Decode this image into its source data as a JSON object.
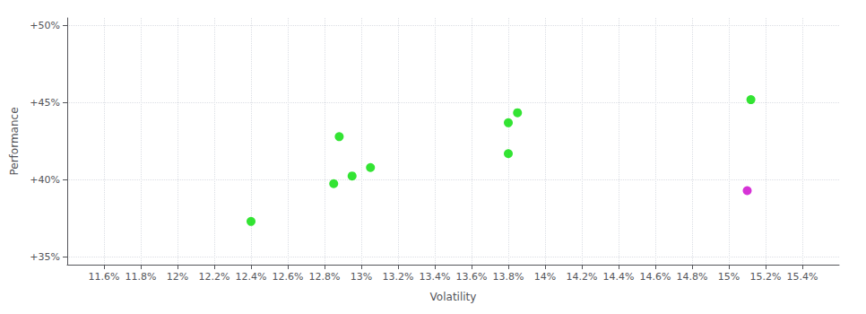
{
  "chart_data": {
    "type": "scatter",
    "xlabel": "Volatility",
    "ylabel": "Performance",
    "xlim": [
      0.114,
      0.156
    ],
    "ylim": [
      0.345,
      0.505
    ],
    "xticks": [
      {
        "value": 0.116,
        "label": "11.6%"
      },
      {
        "value": 0.118,
        "label": "11.8%"
      },
      {
        "value": 0.12,
        "label": "12%"
      },
      {
        "value": 0.122,
        "label": "12.2%"
      },
      {
        "value": 0.124,
        "label": "12.4%"
      },
      {
        "value": 0.126,
        "label": "12.6%"
      },
      {
        "value": 0.128,
        "label": "12.8%"
      },
      {
        "value": 0.13,
        "label": "13%"
      },
      {
        "value": 0.132,
        "label": "13.2%"
      },
      {
        "value": 0.134,
        "label": "13.4%"
      },
      {
        "value": 0.136,
        "label": "13.6%"
      },
      {
        "value": 0.138,
        "label": "13.8%"
      },
      {
        "value": 0.14,
        "label": "14%"
      },
      {
        "value": 0.142,
        "label": "14.2%"
      },
      {
        "value": 0.144,
        "label": "14.4%"
      },
      {
        "value": 0.146,
        "label": "14.6%"
      },
      {
        "value": 0.148,
        "label": "14.8%"
      },
      {
        "value": 0.15,
        "label": "15%"
      },
      {
        "value": 0.152,
        "label": "15.2%"
      },
      {
        "value": 0.154,
        "label": "15.4%"
      }
    ],
    "yticks": [
      {
        "value": 0.35,
        "label": "+35%"
      },
      {
        "value": 0.4,
        "label": "+40%"
      },
      {
        "value": 0.45,
        "label": "+45%"
      },
      {
        "value": 0.5,
        "label": "+50%"
      }
    ],
    "grid": true,
    "series": [
      {
        "color": "#00dd00",
        "x": [
          0.124,
          0.1285,
          0.1295,
          0.1305,
          0.1288,
          0.138,
          0.138,
          0.1385,
          0.1512
        ],
        "values": [
          0.373,
          0.3975,
          0.4025,
          0.408,
          0.428,
          0.417,
          0.437,
          0.4435,
          0.452
        ]
      },
      {
        "color": "#cc00cc",
        "x": [
          0.151
        ],
        "values": [
          0.393
        ]
      }
    ]
  }
}
